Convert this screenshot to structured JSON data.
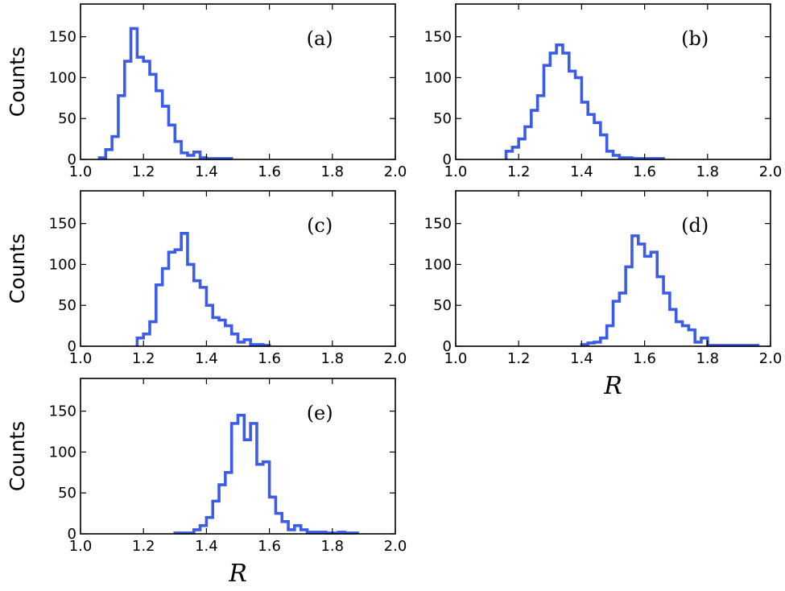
{
  "chart_data": [
    {
      "type": "histogram",
      "panel_label": "(a)",
      "ylabel": "Counts",
      "xlabel": "",
      "xlim": [
        1.0,
        2.0
      ],
      "ylim": [
        0,
        190
      ],
      "xticks": [
        "1.0",
        "1.2",
        "1.4",
        "1.6",
        "1.8",
        "2.0"
      ],
      "yticks": [
        "0",
        "50",
        "100",
        "150"
      ],
      "color": "#3a5ce6",
      "bin_width": 0.02,
      "bins_start": 1.06,
      "counts": [
        2,
        12,
        28,
        78,
        120,
        160,
        125,
        120,
        104,
        84,
        65,
        42,
        22,
        8,
        5,
        9,
        2,
        1,
        1,
        1,
        1
      ]
    },
    {
      "type": "histogram",
      "panel_label": "(b)",
      "ylabel": "",
      "xlabel": "",
      "xlim": [
        1.0,
        2.0
      ],
      "ylim": [
        0,
        190
      ],
      "xticks": [
        "1.0",
        "1.2",
        "1.4",
        "1.6",
        "1.8",
        "2.0"
      ],
      "yticks": [
        "0",
        "50",
        "100",
        "150"
      ],
      "color": "#3a5ce6",
      "bin_width": 0.02,
      "bins_start": 1.16,
      "counts": [
        10,
        15,
        25,
        40,
        60,
        78,
        115,
        130,
        140,
        130,
        108,
        100,
        70,
        55,
        45,
        30,
        10,
        5,
        2,
        2,
        1,
        1,
        1,
        1,
        1
      ]
    },
    {
      "type": "histogram",
      "panel_label": "(c)",
      "ylabel": "Counts",
      "xlabel": "",
      "xlim": [
        1.0,
        2.0
      ],
      "ylim": [
        0,
        190
      ],
      "xticks": [
        "1.0",
        "1.2",
        "1.4",
        "1.6",
        "1.8",
        "2.0"
      ],
      "yticks": [
        "0",
        "50",
        "100",
        "150"
      ],
      "color": "#3a5ce6",
      "bin_width": 0.02,
      "bins_start": 1.18,
      "counts": [
        10,
        15,
        30,
        75,
        95,
        115,
        118,
        138,
        100,
        80,
        72,
        50,
        35,
        32,
        25,
        15,
        5,
        8,
        2,
        2,
        1
      ]
    },
    {
      "type": "histogram",
      "panel_label": "(d)",
      "ylabel": "",
      "xlabel": "R",
      "xlim": [
        1.0,
        2.0
      ],
      "ylim": [
        0,
        190
      ],
      "xticks": [
        "1.0",
        "1.2",
        "1.4",
        "1.6",
        "1.8",
        "2.0"
      ],
      "yticks": [
        "0",
        "50",
        "100",
        "150"
      ],
      "color": "#3a5ce6",
      "bin_width": 0.02,
      "bins_start": 1.4,
      "counts": [
        2,
        4,
        5,
        10,
        25,
        55,
        65,
        97,
        135,
        125,
        110,
        115,
        85,
        65,
        45,
        30,
        25,
        20,
        5,
        10,
        1,
        1,
        1,
        1,
        1,
        1,
        1,
        1
      ]
    },
    {
      "type": "histogram",
      "panel_label": "(e)",
      "ylabel": "Counts",
      "xlabel": "R",
      "xlim": [
        1.0,
        2.0
      ],
      "ylim": [
        0,
        190
      ],
      "xticks": [
        "1.0",
        "1.2",
        "1.4",
        "1.6",
        "1.8",
        "2.0"
      ],
      "yticks": [
        "0",
        "50",
        "100",
        "150"
      ],
      "color": "#3a5ce6",
      "bin_width": 0.02,
      "bins_start": 1.3,
      "counts": [
        1,
        1,
        1,
        5,
        10,
        20,
        40,
        60,
        75,
        135,
        145,
        115,
        135,
        85,
        88,
        45,
        25,
        15,
        5,
        10,
        5,
        2,
        2,
        2,
        1,
        1,
        2,
        1,
        1
      ]
    }
  ]
}
